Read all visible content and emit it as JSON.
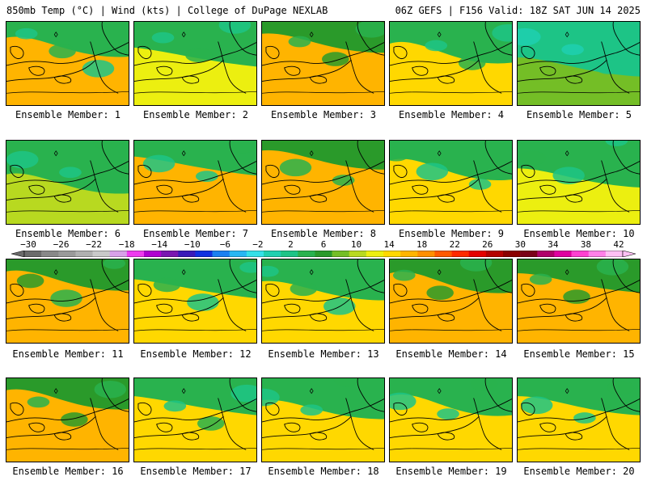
{
  "header": {
    "left": "850mb Temp (°C) | Wind (kts) | College of DuPage NEXLAB",
    "right": "06Z GEFS | F156 Valid: 18Z SAT JUN 14 2025"
  },
  "colorbar": {
    "labels": [
      "-30",
      "-26",
      "-22",
      "-18",
      "-14",
      "-10",
      "-6",
      "-2",
      "2",
      "6",
      "10",
      "14",
      "18",
      "22",
      "26",
      "30",
      "34",
      "38",
      "42"
    ],
    "colors": [
      "#6b6b6b",
      "#888888",
      "#9a9a9a",
      "#b0b0b0",
      "#c9c9c9",
      "#d8a0e8",
      "#ee3aee",
      "#b000d0",
      "#7a16b0",
      "#3a1ab8",
      "#1030e0",
      "#1a7ff0",
      "#27b6f2",
      "#34e0e8",
      "#1fd0b0",
      "#1dc486",
      "#29b24e",
      "#2a9a2a",
      "#74be26",
      "#b8d920",
      "#ecef10",
      "#ffd800",
      "#ffb400",
      "#ff8f00",
      "#ff5a00",
      "#ff2a00",
      "#e40000",
      "#b40000",
      "#8a0000",
      "#7a0018",
      "#b0006a",
      "#e000a0",
      "#ff40d0",
      "#ff80e8",
      "#ffc0f4"
    ]
  },
  "members": [
    {
      "label": "Ensemble Member: 1",
      "warmth": 0.7
    },
    {
      "label": "Ensemble Member: 2",
      "warmth": 0.45
    },
    {
      "label": "Ensemble Member: 3",
      "warmth": 0.8
    },
    {
      "label": "Ensemble Member: 4",
      "warmth": 0.55
    },
    {
      "label": "Ensemble Member: 5",
      "warmth": 0.2
    },
    {
      "label": "Ensemble Member: 6",
      "warmth": 0.25
    },
    {
      "label": "Ensemble Member: 7",
      "warmth": 0.7
    },
    {
      "label": "Ensemble Member: 8",
      "warmth": 0.85
    },
    {
      "label": "Ensemble Member: 9",
      "warmth": 0.6
    },
    {
      "label": "Ensemble Member: 10",
      "warmth": 0.4
    },
    {
      "label": "Ensemble Member: 11",
      "warmth": 0.8
    },
    {
      "label": "Ensemble Member: 12",
      "warmth": 0.6
    },
    {
      "label": "Ensemble Member: 13",
      "warmth": 0.55
    },
    {
      "label": "Ensemble Member: 14",
      "warmth": 0.75
    },
    {
      "label": "Ensemble Member: 15",
      "warmth": 0.75
    },
    {
      "label": "Ensemble Member: 16",
      "warmth": 0.8
    },
    {
      "label": "Ensemble Member: 17",
      "warmth": 0.65
    },
    {
      "label": "Ensemble Member: 18",
      "warmth": 0.55
    },
    {
      "label": "Ensemble Member: 19",
      "warmth": 0.65
    },
    {
      "label": "Ensemble Member: 20",
      "warmth": 0.65
    }
  ]
}
